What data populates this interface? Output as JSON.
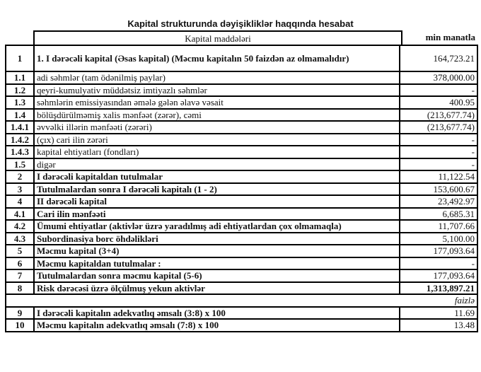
{
  "title": "Kapital strukturunda dəyişikliklər haqqında hesabat",
  "header": {
    "items_label": "Kapital maddələri",
    "unit_label": "min manatla"
  },
  "rows": [
    {
      "num": "1",
      "label": "1. I dərəcəli kapital (Əsas kapital) (Məcmu kapitalın 50 faizdən  az olmamalıdır)",
      "value": "164,723.21"
    },
    {
      "num": "1.1",
      "label": "adi səhmlər (tam ödənilmiş paylar)",
      "value": "378,000.00"
    },
    {
      "num": "1.2",
      "label": "qeyri-kumulyativ müddətsiz imtiyazlı səhmlər",
      "value": "-"
    },
    {
      "num": "1.3",
      "label": "səhmlərin emissiyasından əmələ gələn  əlavə vəsait",
      "value": "400.95"
    },
    {
      "num": "1.4",
      "label": "bölüşdürülməmiş xalis mənfəət (zərər), cəmi",
      "value": "(213,677.74)"
    },
    {
      "num": "1.4.1",
      "label": "əvvəlki illərin mənfəəti (zərəri)",
      "value": "(213,677.74)"
    },
    {
      "num": "1.4.2",
      "label": "(çıx) cari ilin zərəri",
      "value": "-"
    },
    {
      "num": "1.4.3",
      "label": "kapital ehtiyatları (fondları)",
      "value": "-"
    },
    {
      "num": "1.5",
      "label": "digər",
      "value": "-"
    },
    {
      "num": "2",
      "label": "I dərəcəli kapitaldan  tutulmalar",
      "value": "11,122.54"
    },
    {
      "num": "3",
      "label": "Tutulmalardan  sonra I dərəcəli kapitalı (1 - 2)",
      "value": "153,600.67"
    },
    {
      "num": "4",
      "label": "II dərəcəli  kapital",
      "value": "23,492.97"
    },
    {
      "num": "4.1",
      "label": "Cari ilin mənfəəti",
      "value": "6,685.31"
    },
    {
      "num": "4.2",
      "label": "Ümumi ehtiyatlar (aktivlər üzrə yaradılmış adi ehtiyatlardan çox olmamaqla)",
      "value": "11,707.66"
    },
    {
      "num": "4.3",
      "label": "Subordinasiya borc öhdəlikləri",
      "value": "5,100.00"
    },
    {
      "num": "5",
      "label": "Məcmu kapital (3+4)",
      "value": "177,093.64"
    },
    {
      "num": "6",
      "label": "Məcmu kapitaldan tutulmalar :",
      "value": "-"
    },
    {
      "num": "7",
      "label": "Tutulmalardan sonra məcmu kapital (5-6)",
      "value": "177,093.64"
    },
    {
      "num": "8",
      "label": "Risk dərəcəsi üzrə ölçülmuş  yekun aktivlər",
      "value": "1,313,897.21"
    }
  ],
  "percent_label": "faizlə",
  "ratios": [
    {
      "num": "9",
      "label": "I dərəcəli  kapitalın  adekvatlıq əmsalı (3:8) x 100",
      "value": "11.69"
    },
    {
      "num": "10",
      "label": "Məcmu kapitalın  adekvatlıq  əmsalı (7:8) x 100",
      "value": "13.48"
    }
  ]
}
